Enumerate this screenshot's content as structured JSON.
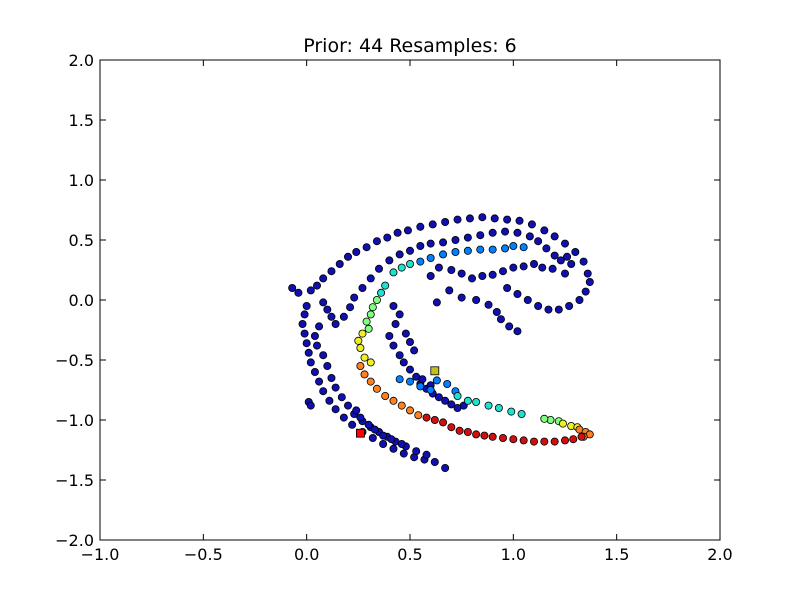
{
  "chart_data": {
    "type": "scatter",
    "title": "Prior: 44 Resamples: 6",
    "xlabel": "",
    "ylabel": "",
    "xlim": [
      -1.0,
      2.0
    ],
    "ylim": [
      -2.0,
      2.0
    ],
    "xticks": [
      "−1.0",
      "−0.5",
      "0.0",
      "0.5",
      "1.0",
      "1.5",
      "2.0"
    ],
    "xtick_values": [
      -1.0,
      -0.5,
      0.0,
      0.5,
      1.0,
      1.5,
      2.0
    ],
    "yticks": [
      "−2.0",
      "−1.5",
      "−1.0",
      "−0.5",
      "0.0",
      "0.5",
      "1.0",
      "1.5",
      "2.0"
    ],
    "ytick_values": [
      -2.0,
      -1.5,
      -1.0,
      -0.5,
      0.0,
      0.5,
      1.0,
      1.5,
      2.0
    ],
    "grid": false,
    "colormap": "jet",
    "series": [
      {
        "marker": "circle",
        "color": "#1010b0",
        "points": [
          [
            -0.07,
            0.1
          ],
          [
            -0.04,
            0.06
          ],
          [
            0.02,
            0.08
          ],
          [
            0.05,
            0.12
          ],
          [
            0.08,
            0.18
          ],
          [
            0.12,
            0.24
          ],
          [
            0.16,
            0.3
          ],
          [
            0.2,
            0.36
          ],
          [
            0.24,
            0.4
          ],
          [
            0.29,
            0.44
          ],
          [
            0.34,
            0.49
          ],
          [
            0.39,
            0.52
          ],
          [
            0.44,
            0.56
          ],
          [
            0.49,
            0.58
          ],
          [
            0.55,
            0.61
          ],
          [
            0.61,
            0.63
          ],
          [
            0.67,
            0.65
          ],
          [
            0.73,
            0.67
          ],
          [
            0.79,
            0.68
          ],
          [
            0.85,
            0.69
          ],
          [
            0.91,
            0.68
          ],
          [
            0.97,
            0.67
          ],
          [
            1.03,
            0.66
          ],
          [
            1.09,
            0.63
          ],
          [
            1.15,
            0.58
          ],
          [
            1.2,
            0.53
          ],
          [
            1.25,
            0.47
          ],
          [
            1.3,
            0.4
          ],
          [
            1.34,
            0.32
          ],
          [
            1.36,
            0.22
          ],
          [
            1.37,
            0.15
          ],
          [
            1.35,
            0.07
          ],
          [
            1.32,
            0.0
          ],
          [
            1.27,
            -0.05
          ],
          [
            1.22,
            -0.08
          ],
          [
            1.17,
            -0.08
          ],
          [
            1.12,
            -0.05
          ],
          [
            1.07,
            0.0
          ],
          [
            1.02,
            0.05
          ],
          [
            0.97,
            0.1
          ],
          [
            0.0,
            -0.05
          ],
          [
            -0.01,
            -0.12
          ],
          [
            -0.02,
            -0.2
          ],
          [
            -0.01,
            -0.28
          ],
          [
            0.0,
            -0.36
          ],
          [
            0.01,
            -0.44
          ],
          [
            0.02,
            -0.52
          ],
          [
            0.04,
            -0.6
          ],
          [
            0.06,
            -0.68
          ],
          [
            0.08,
            -0.76
          ],
          [
            0.11,
            -0.84
          ],
          [
            0.14,
            -0.91
          ],
          [
            0.18,
            -0.98
          ],
          [
            0.22,
            -1.04
          ],
          [
            0.27,
            -1.1
          ],
          [
            0.32,
            -1.15
          ],
          [
            0.37,
            -1.2
          ],
          [
            0.42,
            -1.24
          ],
          [
            0.47,
            -1.28
          ],
          [
            0.52,
            -1.31
          ],
          [
            0.57,
            -1.33
          ],
          [
            0.62,
            -1.35
          ],
          [
            0.67,
            -1.4
          ],
          [
            0.01,
            -0.85
          ],
          [
            0.02,
            -0.88
          ],
          [
            0.08,
            -0.02
          ],
          [
            0.1,
            -0.08
          ],
          [
            0.12,
            -0.14
          ],
          [
            0.14,
            -0.2
          ],
          [
            0.18,
            -0.14
          ],
          [
            0.21,
            -0.06
          ],
          [
            0.23,
            0.02
          ],
          [
            0.27,
            0.1
          ],
          [
            0.31,
            0.18
          ],
          [
            0.35,
            0.26
          ],
          [
            0.4,
            0.33
          ],
          [
            0.45,
            0.38
          ],
          [
            0.5,
            0.41
          ],
          [
            0.55,
            0.45
          ],
          [
            0.6,
            0.47
          ],
          [
            0.66,
            0.48
          ],
          [
            0.72,
            0.5
          ],
          [
            0.78,
            0.52
          ],
          [
            0.84,
            0.54
          ],
          [
            0.9,
            0.56
          ],
          [
            0.96,
            0.57
          ],
          [
            1.02,
            0.56
          ],
          [
            1.08,
            0.53
          ],
          [
            1.12,
            0.49
          ],
          [
            1.16,
            0.43
          ],
          [
            1.2,
            0.37
          ],
          [
            1.23,
            0.33
          ],
          [
            1.26,
            0.36
          ],
          [
            1.28,
            0.3
          ],
          [
            1.25,
            0.22
          ],
          [
            1.19,
            0.26
          ],
          [
            1.14,
            0.27
          ],
          [
            1.1,
            0.3
          ],
          [
            1.05,
            0.28
          ],
          [
            1.0,
            0.27
          ],
          [
            0.95,
            0.24
          ],
          [
            0.9,
            0.21
          ],
          [
            0.85,
            0.2
          ],
          [
            0.8,
            0.18
          ],
          [
            0.75,
            0.22
          ],
          [
            0.7,
            0.25
          ],
          [
            0.64,
            0.27
          ],
          [
            0.6,
            0.2
          ],
          [
            0.08,
            -0.46
          ],
          [
            0.05,
            -0.38
          ],
          [
            0.04,
            -0.3
          ],
          [
            0.06,
            -0.22
          ],
          [
            0.1,
            -0.55
          ],
          [
            0.12,
            -0.65
          ],
          [
            0.14,
            -0.73
          ],
          [
            0.17,
            -0.81
          ],
          [
            0.2,
            -0.88
          ],
          [
            0.23,
            -0.95
          ],
          [
            0.27,
            -1.01
          ],
          [
            0.31,
            -1.06
          ],
          [
            0.35,
            -1.1
          ],
          [
            0.39,
            -1.14
          ],
          [
            0.43,
            -1.18
          ],
          [
            0.48,
            -1.22
          ],
          [
            0.53,
            -1.26
          ],
          [
            0.58,
            -1.29
          ],
          [
            0.46,
            -1.2
          ],
          [
            0.41,
            -1.16
          ],
          [
            0.37,
            -1.13
          ],
          [
            0.33,
            -1.08
          ],
          [
            0.3,
            -1.04
          ],
          [
            0.26,
            -0.98
          ],
          [
            0.24,
            -0.92
          ],
          [
            0.42,
            -0.05
          ],
          [
            0.45,
            -0.12
          ],
          [
            0.43,
            -0.2
          ],
          [
            0.4,
            -0.3
          ],
          [
            0.42,
            -0.38
          ],
          [
            0.45,
            -0.46
          ],
          [
            0.47,
            -0.52
          ],
          [
            0.5,
            -0.58
          ],
          [
            0.53,
            -0.64
          ],
          [
            0.55,
            -0.7
          ],
          [
            0.58,
            -0.74
          ],
          [
            0.61,
            -0.78
          ],
          [
            0.64,
            -0.81
          ],
          [
            0.67,
            -0.84
          ],
          [
            0.7,
            -0.87
          ],
          [
            0.73,
            -0.9
          ],
          [
            0.76,
            -0.88
          ],
          [
            0.52,
            -0.42
          ],
          [
            0.5,
            -0.35
          ],
          [
            0.48,
            -0.28
          ],
          [
            0.63,
            -0.02
          ],
          [
            0.69,
            0.08
          ],
          [
            0.75,
            0.02
          ],
          [
            0.82,
            0.0
          ],
          [
            0.88,
            -0.04
          ],
          [
            0.92,
            -0.1
          ],
          [
            0.94,
            -0.16
          ],
          [
            0.98,
            -0.22
          ],
          [
            1.02,
            -0.26
          ],
          [
            0.6,
            -0.71
          ],
          [
            0.56,
            -0.66
          ]
        ]
      },
      {
        "marker": "circle",
        "color": "#0080ff",
        "points": [
          [
            0.55,
            0.32
          ],
          [
            0.6,
            0.35
          ],
          [
            0.66,
            0.38
          ],
          [
            0.72,
            0.4
          ],
          [
            0.78,
            0.41
          ],
          [
            0.84,
            0.42
          ],
          [
            0.9,
            0.42
          ],
          [
            0.96,
            0.43
          ],
          [
            1.0,
            0.45
          ],
          [
            1.05,
            0.44
          ],
          [
            0.45,
            -0.66
          ],
          [
            0.5,
            -0.68
          ],
          [
            0.55,
            -0.72
          ],
          [
            0.6,
            -0.75
          ],
          [
            0.63,
            -0.67
          ],
          [
            0.68,
            -0.7
          ],
          [
            0.72,
            -0.76
          ]
        ]
      },
      {
        "marker": "circle",
        "color": "#20e0d0",
        "points": [
          [
            0.42,
            0.23
          ],
          [
            0.46,
            0.27
          ],
          [
            0.5,
            0.3
          ],
          [
            0.38,
            0.12
          ],
          [
            0.36,
            0.06
          ],
          [
            0.78,
            -0.84
          ],
          [
            0.82,
            -0.85
          ],
          [
            0.88,
            -0.88
          ],
          [
            0.93,
            -0.9
          ],
          [
            0.99,
            -0.93
          ],
          [
            1.04,
            -0.95
          ],
          [
            0.73,
            -0.8
          ]
        ]
      },
      {
        "marker": "circle",
        "color": "#80ff80",
        "points": [
          [
            0.34,
            0.0
          ],
          [
            0.32,
            -0.06
          ],
          [
            0.31,
            -0.12
          ],
          [
            0.29,
            -0.18
          ],
          [
            0.3,
            -0.24
          ],
          [
            1.18,
            -1.0
          ],
          [
            1.22,
            -1.01
          ],
          [
            1.15,
            -0.99
          ]
        ]
      },
      {
        "marker": "circle",
        "color": "#f0f020",
        "points": [
          [
            0.27,
            -0.28
          ],
          [
            0.25,
            -0.34
          ],
          [
            0.26,
            -0.4
          ],
          [
            0.28,
            -0.48
          ],
          [
            0.31,
            -0.52
          ],
          [
            1.24,
            -1.03
          ],
          [
            1.28,
            -1.05
          ],
          [
            1.31,
            -1.06
          ]
        ]
      },
      {
        "marker": "circle",
        "color": "#ff8020",
        "points": [
          [
            0.26,
            -0.55
          ],
          [
            0.28,
            -0.62
          ],
          [
            0.31,
            -0.68
          ],
          [
            0.34,
            -0.74
          ],
          [
            0.38,
            -0.8
          ],
          [
            0.42,
            -0.84
          ],
          [
            0.46,
            -0.88
          ],
          [
            0.5,
            -0.92
          ],
          [
            0.54,
            -0.96
          ],
          [
            1.32,
            -1.08
          ],
          [
            1.35,
            -1.1
          ],
          [
            1.37,
            -1.12
          ],
          [
            1.34,
            -1.14
          ]
        ]
      },
      {
        "marker": "circle",
        "color": "#d01010",
        "points": [
          [
            0.58,
            -0.98
          ],
          [
            0.62,
            -1.0
          ],
          [
            0.66,
            -1.02
          ],
          [
            0.7,
            -1.06
          ],
          [
            0.74,
            -1.09
          ],
          [
            0.78,
            -1.1
          ],
          [
            0.82,
            -1.12
          ],
          [
            0.86,
            -1.13
          ],
          [
            0.9,
            -1.14
          ],
          [
            0.95,
            -1.15
          ],
          [
            1.0,
            -1.16
          ],
          [
            1.05,
            -1.17
          ],
          [
            1.1,
            -1.18
          ],
          [
            1.15,
            -1.18
          ],
          [
            1.2,
            -1.18
          ],
          [
            1.25,
            -1.17
          ],
          [
            1.29,
            -1.16
          ],
          [
            1.33,
            -1.14
          ]
        ]
      },
      {
        "marker": "square",
        "color": "#c0c020",
        "points": [
          [
            0.62,
            -0.59
          ]
        ]
      },
      {
        "marker": "square",
        "color": "#ff0000",
        "points": [
          [
            0.26,
            -1.11
          ]
        ]
      }
    ]
  }
}
